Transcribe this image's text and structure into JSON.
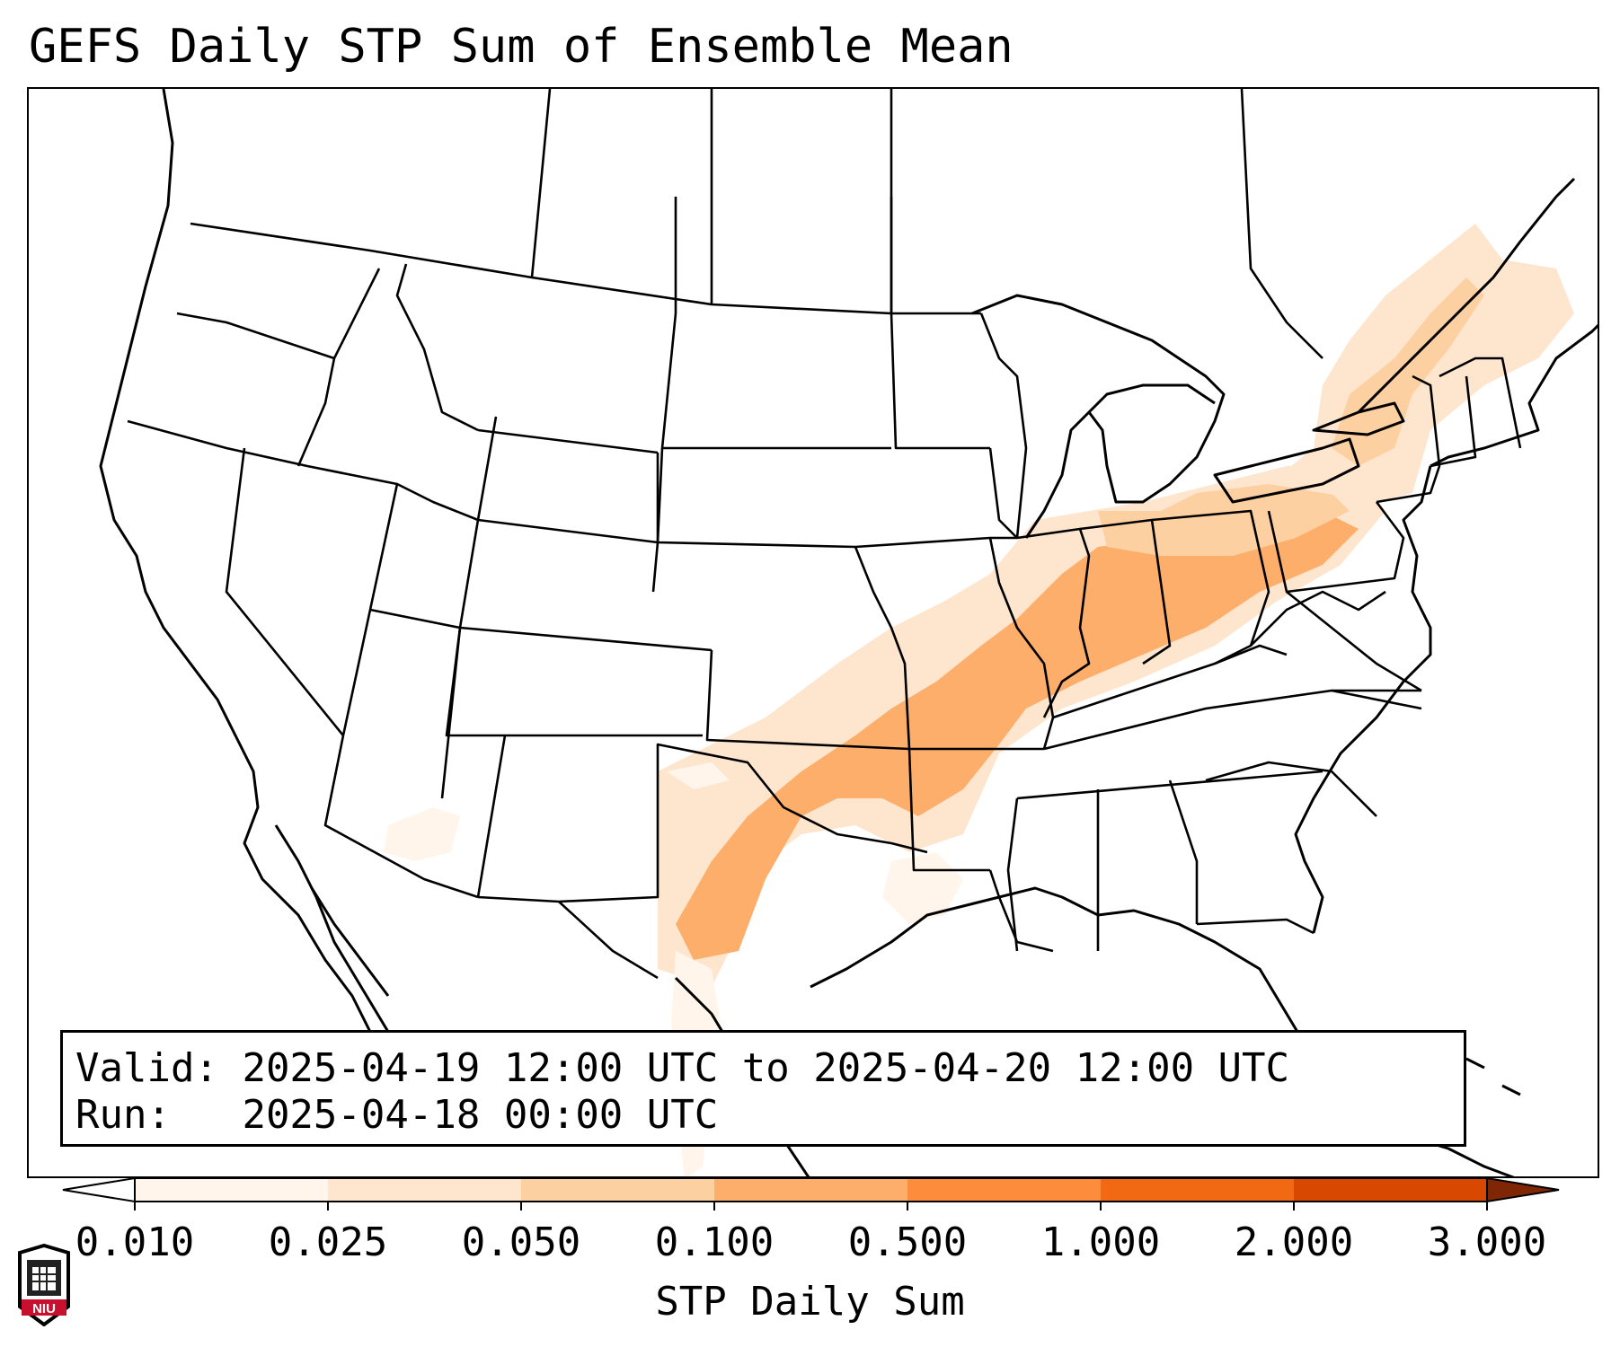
{
  "title": "GEFS Daily STP Sum of Ensemble Mean",
  "info": {
    "valid_label": "Valid:",
    "valid_value": "2025-04-19 12:00 UTC to 2025-04-20 12:00 UTC",
    "run_label": "Run:",
    "run_value": "2025-04-18 00:00 UTC"
  },
  "colorbar": {
    "label": "STP Daily Sum",
    "ticks": [
      "0.010",
      "0.025",
      "0.050",
      "0.100",
      "0.500",
      "1.000",
      "2.000",
      "3.000"
    ],
    "colors": [
      "#fff5eb",
      "#fee6ce",
      "#fdd0a2",
      "#fdae6b",
      "#fd8d3c",
      "#f16913",
      "#d94801",
      "#a63603"
    ],
    "extend_low_color": "#ffffff",
    "extend_high_color": "#7f2704"
  },
  "logo": {
    "text": "NIU",
    "color": "#c8102e"
  },
  "stp_regions": [
    {
      "region": "Arkansas / Missouri / Oklahoma core",
      "level": "0.100"
    },
    {
      "region": "Tennessee / Kentucky / Indiana / Ohio",
      "level": "0.100"
    },
    {
      "region": "Pennsylvania / West Virginia",
      "level": "0.050"
    },
    {
      "region": "Central Texas",
      "level": "0.100"
    },
    {
      "region": "New York / New England / Quebec",
      "level": "0.025"
    }
  ]
}
